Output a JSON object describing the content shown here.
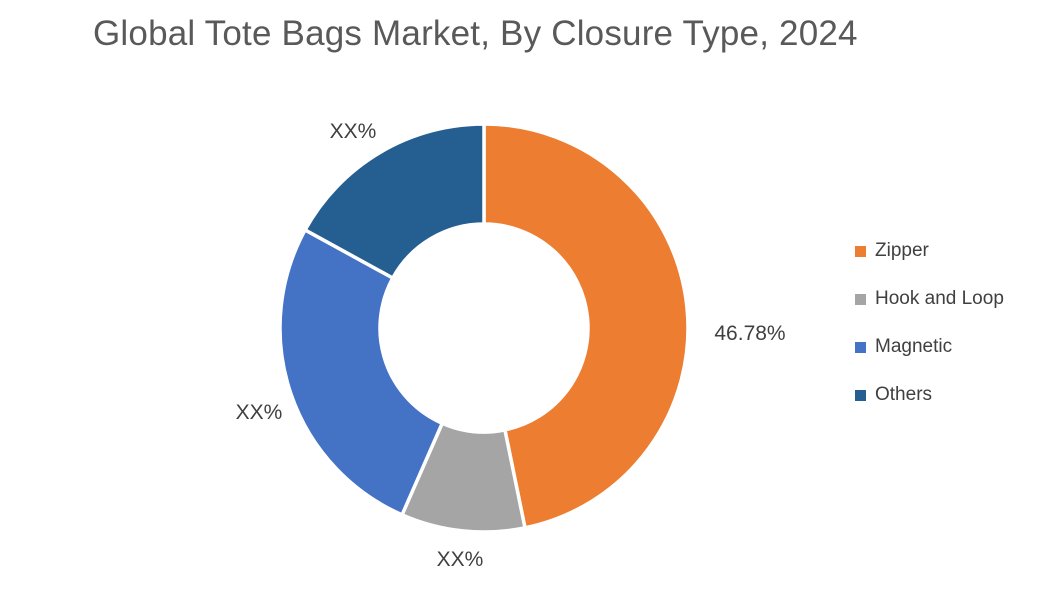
{
  "title": {
    "text": "Global Tote Bags Market, By Closure Type, 2024",
    "color": "#595959"
  },
  "chart_data": {
    "type": "pie",
    "subtype": "donut",
    "title": "Global Tote Bags Market, By Closure Type, 2024",
    "start_angle_deg": 0,
    "direction": "clockwise",
    "inner_radius_ratio": 0.51,
    "gap_color": "#ffffff",
    "legend_position": "right",
    "note": "Only the Zipper slice shows a numeric value; other slices are labeled XX% and their percentages below are estimated from arc angles.",
    "slices": [
      {
        "name": "Zipper",
        "label": "46.78%",
        "value_pct": 46.78,
        "color": "#ED7D31"
      },
      {
        "name": "Hook and Loop",
        "label": "XX%",
        "value_pct": 9.8,
        "color": "#A5A5A5"
      },
      {
        "name": "Magnetic",
        "label": "XX%",
        "value_pct": 26.4,
        "color": "#4472C4"
      },
      {
        "name": "Others",
        "label": "XX%",
        "value_pct": 17.02,
        "color": "#255E91"
      }
    ]
  }
}
